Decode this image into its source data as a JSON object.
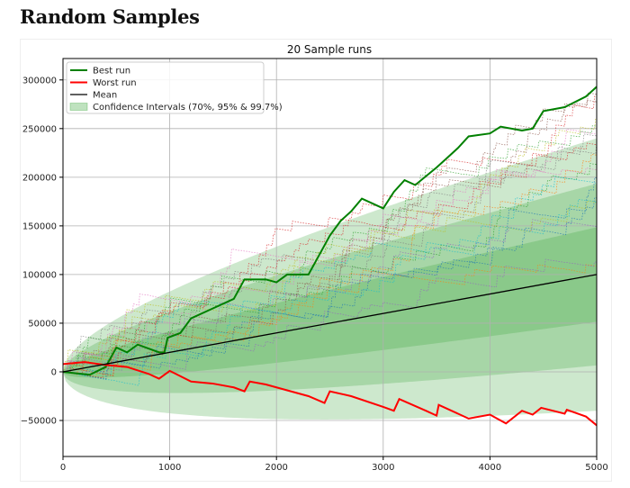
{
  "page": {
    "heading": "Random Samples"
  },
  "chart_data": {
    "type": "line",
    "title": "20 Sample runs",
    "xlabel": "",
    "ylabel": "",
    "xlim": [
      0,
      5000
    ],
    "ylim": [
      -87000,
      322000
    ],
    "xticks": [
      0,
      1000,
      2000,
      3000,
      4000,
      5000
    ],
    "yticks": [
      -50000,
      0,
      50000,
      100000,
      150000,
      200000,
      250000,
      300000
    ],
    "grid": true,
    "legend_placement": "top-left",
    "legend": [
      "Best run",
      "Worst run",
      "Mean",
      "Confidence Intervals (70%, 95% & 99.7%)"
    ],
    "colors": {
      "best": "#008000",
      "worst": "#ff0000",
      "mean": "#000000",
      "ci": "#2ca02c"
    },
    "mean": {
      "name": "Mean",
      "x": [
        0,
        5000
      ],
      "y": [
        0,
        100000
      ]
    },
    "confidence_intervals": {
      "levels": [
        "70%",
        "95%",
        "99.7%"
      ],
      "sigma_multiples": [
        1.04,
        2,
        3
      ],
      "sigma_per_sqrt_step": 660
    },
    "sample_runs": {
      "count": 20,
      "style": "dotted"
    },
    "series": [
      {
        "name": "Best run",
        "x": [
          0,
          250,
          400,
          500,
          600,
          700,
          900,
          950,
          980,
          1100,
          1200,
          1400,
          1600,
          1700,
          1900,
          2000,
          2100,
          2300,
          2400,
          2500,
          2600,
          2700,
          2800,
          3000,
          3100,
          3200,
          3300,
          3500,
          3600,
          3700,
          3800,
          4000,
          4100,
          4300,
          4400,
          4500,
          4700,
          4900,
          5000
        ],
        "y": [
          0,
          -3000,
          5000,
          25000,
          20000,
          28000,
          20000,
          20000,
          35000,
          40000,
          55000,
          65000,
          75000,
          95000,
          95000,
          92000,
          100000,
          100000,
          120000,
          140000,
          155000,
          165000,
          178000,
          168000,
          185000,
          197000,
          192000,
          210000,
          220000,
          230000,
          242000,
          245000,
          252000,
          248000,
          250000,
          268000,
          272000,
          283000,
          293000
        ]
      },
      {
        "name": "Worst run",
        "x": [
          0,
          200,
          400,
          600,
          800,
          900,
          1000,
          1200,
          1400,
          1600,
          1700,
          1750,
          1900,
          2100,
          2300,
          2450,
          2500,
          2700,
          3000,
          3100,
          3150,
          3400,
          3500,
          3520,
          3800,
          4000,
          4150,
          4300,
          4400,
          4480,
          4700,
          4720,
          4900,
          5000
        ],
        "y": [
          8000,
          10000,
          7000,
          5000,
          -2000,
          -7000,
          1000,
          -10000,
          -12000,
          -16000,
          -20000,
          -10000,
          -13000,
          -19000,
          -25000,
          -32000,
          -20000,
          -25000,
          -36000,
          -40000,
          -28000,
          -40000,
          -45000,
          -34000,
          -48000,
          -44000,
          -53000,
          -40000,
          -44000,
          -37000,
          -43000,
          -39000,
          -46000,
          -55000
        ]
      }
    ]
  }
}
